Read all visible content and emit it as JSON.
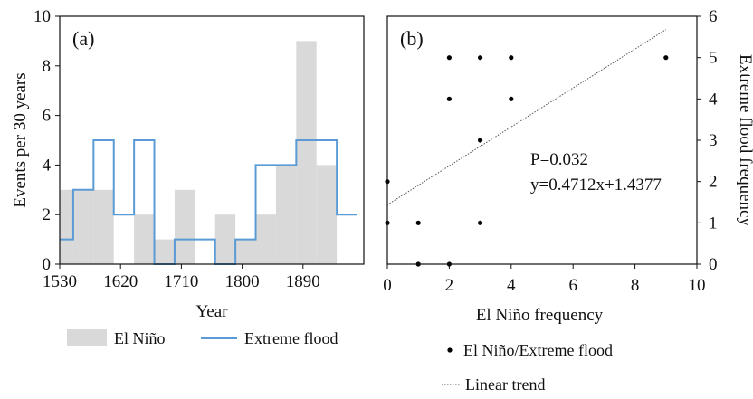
{
  "chart_data": [
    {
      "type": "bar",
      "panel_label": "(a)",
      "xlabel": "Year",
      "ylabel": "Events per 30 years",
      "xlim": [
        1530,
        1980
      ],
      "ylim": [
        0,
        10
      ],
      "xticks": [
        1530,
        1620,
        1710,
        1800,
        1890
      ],
      "yticks": [
        0,
        2,
        4,
        6,
        8,
        10
      ],
      "grid": false,
      "legend_position": "bottom",
      "series": [
        {
          "name": "El Niño",
          "color": "#d9d9d9",
          "bin_width": 30,
          "bins": [
            {
              "start": 1520,
              "value": 3
            },
            {
              "start": 1550,
              "value": 3
            },
            {
              "start": 1580,
              "value": 3
            },
            {
              "start": 1610,
              "value": 0
            },
            {
              "start": 1640,
              "value": 2
            },
            {
              "start": 1670,
              "value": 1
            },
            {
              "start": 1700,
              "value": 3
            },
            {
              "start": 1730,
              "value": 0
            },
            {
              "start": 1760,
              "value": 2
            },
            {
              "start": 1790,
              "value": 1
            },
            {
              "start": 1820,
              "value": 2
            },
            {
              "start": 1850,
              "value": 4
            },
            {
              "start": 1880,
              "value": 9
            },
            {
              "start": 1910,
              "value": 4
            },
            {
              "start": 1940,
              "value": 0
            }
          ]
        },
        {
          "name": "Extreme flood",
          "color": "#5b9bd5",
          "step_edges": [
            1530,
            1550,
            1580,
            1610,
            1640,
            1670,
            1700,
            1730,
            1760,
            1790,
            1820,
            1850,
            1880,
            1910,
            1940,
            1970
          ],
          "step_values": [
            1,
            3,
            5,
            2,
            5,
            0,
            1,
            1,
            0,
            1,
            4,
            4,
            5,
            5,
            2
          ]
        }
      ]
    },
    {
      "type": "scatter",
      "panel_label": "(b)",
      "xlabel": "El Niño frequency",
      "ylabel": "Extreme flood frequency",
      "xlim": [
        0,
        10
      ],
      "ylim": [
        0,
        6
      ],
      "xticks": [
        0,
        2,
        4,
        6,
        8,
        10
      ],
      "yticks": [
        0,
        1,
        2,
        3,
        4,
        5,
        6
      ],
      "grid": false,
      "legend_position": "bottom",
      "series": [
        {
          "name": "El Niño/Extreme flood",
          "color": "#000000",
          "points": [
            {
              "x": 0,
              "y": 2
            },
            {
              "x": 0,
              "y": 1
            },
            {
              "x": 1,
              "y": 1
            },
            {
              "x": 1,
              "y": 0
            },
            {
              "x": 2,
              "y": 0
            },
            {
              "x": 2,
              "y": 5
            },
            {
              "x": 2,
              "y": 4
            },
            {
              "x": 3,
              "y": 5
            },
            {
              "x": 3,
              "y": 3
            },
            {
              "x": 3,
              "y": 1
            },
            {
              "x": 4,
              "y": 5
            },
            {
              "x": 4,
              "y": 4
            },
            {
              "x": 9,
              "y": 5
            }
          ]
        },
        {
          "name": "Linear trend",
          "color": "#555555",
          "slope": 0.4712,
          "intercept": 1.4377,
          "x_range": [
            0,
            9
          ]
        }
      ],
      "annotations": [
        "P=0.032",
        "y=0.4712x+1.4377"
      ]
    }
  ]
}
